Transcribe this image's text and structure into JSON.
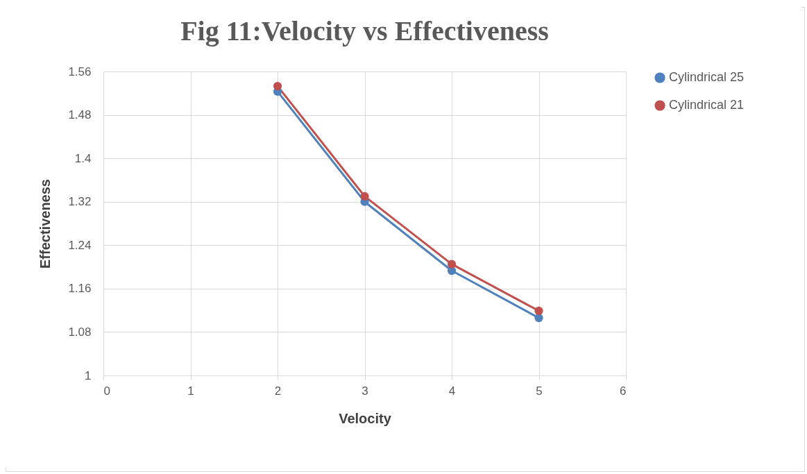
{
  "chart_data": {
    "type": "line",
    "title": "Fig 11:Velocity vs Effectiveness",
    "xlabel": "Velocity",
    "ylabel": "Effectiveness",
    "x": [
      2,
      3,
      4,
      5
    ],
    "series": [
      {
        "name": "Cylindrical 25",
        "color": "#4f81bd",
        "values": [
          1.523,
          1.32,
          1.193,
          1.106
        ]
      },
      {
        "name": "Cylindrical 21",
        "color": "#c0504d",
        "values": [
          1.533,
          1.33,
          1.205,
          1.119
        ]
      }
    ],
    "xlim": [
      0,
      6
    ],
    "xticks": [
      0,
      1,
      2,
      3,
      4,
      5,
      6
    ],
    "ylim": [
      1,
      1.56
    ],
    "yticks": [
      1,
      1.08,
      1.16,
      1.24,
      1.32,
      1.4,
      1.48,
      1.56
    ],
    "grid": true,
    "legend": "right",
    "marker": "circle",
    "line_style": "solid"
  }
}
